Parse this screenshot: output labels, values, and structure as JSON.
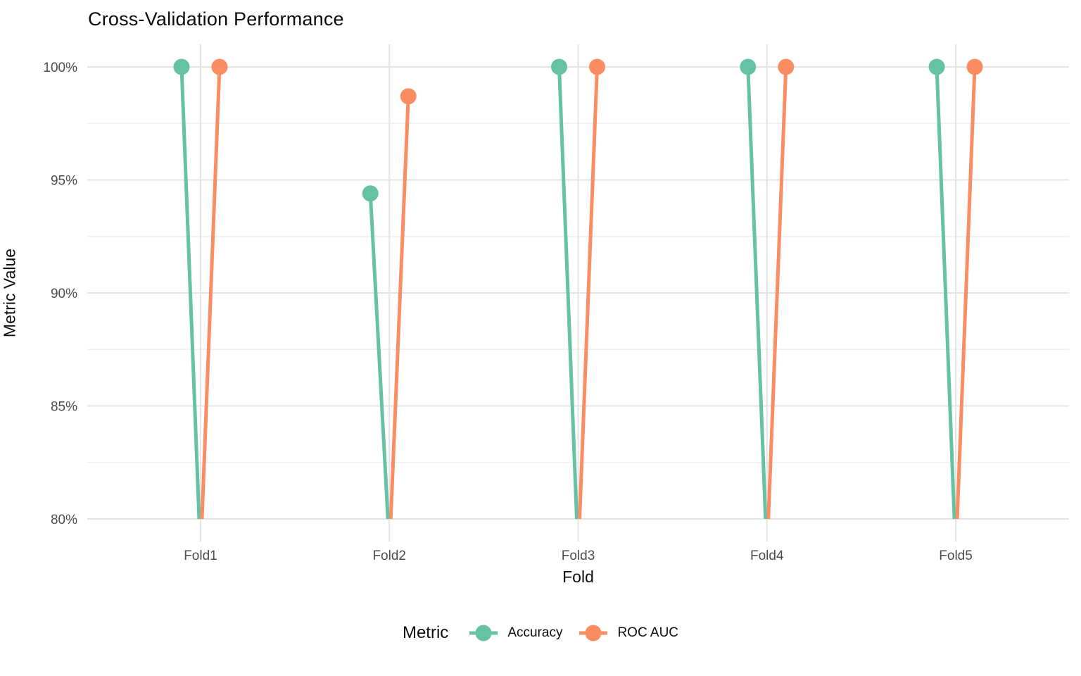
{
  "chart_data": {
    "type": "lollipop",
    "title": "Cross-Validation Performance",
    "xlabel": "Fold",
    "ylabel": "Metric Value",
    "categories": [
      "Fold1",
      "Fold2",
      "Fold3",
      "Fold4",
      "Fold5"
    ],
    "series": [
      {
        "name": "Accuracy",
        "color": "#66C2A5",
        "values": [
          100,
          94.4,
          100,
          100,
          100
        ]
      },
      {
        "name": "ROC AUC",
        "color": "#FC8D62",
        "values": [
          100,
          98.7,
          100,
          100,
          100
        ]
      }
    ],
    "value_unit": "percent",
    "ylim": [
      80,
      100
    ],
    "baseline_value": 80,
    "yticks": [
      {
        "value": 100,
        "label": "100%"
      },
      {
        "value": 95,
        "label": "95%"
      },
      {
        "value": 90,
        "label": "90%"
      },
      {
        "value": 85,
        "label": "85%"
      },
      {
        "value": 80,
        "label": "80%"
      }
    ],
    "y_minor_ticks": [
      97.5,
      92.5,
      87.5,
      82.5
    ],
    "grid": true,
    "legend_title": "Metric",
    "legend_position": "bottom"
  },
  "styles": {
    "accuracy_color": "#66C2A5",
    "roc_auc_color": "#FC8D62",
    "grid_major_color": "#E4E4E4",
    "grid_minor_color": "#F0F0F0",
    "tick_label_color": "#4D4D4D",
    "text_color": "#0d0d0d",
    "background_color": "#FFFFFF"
  }
}
